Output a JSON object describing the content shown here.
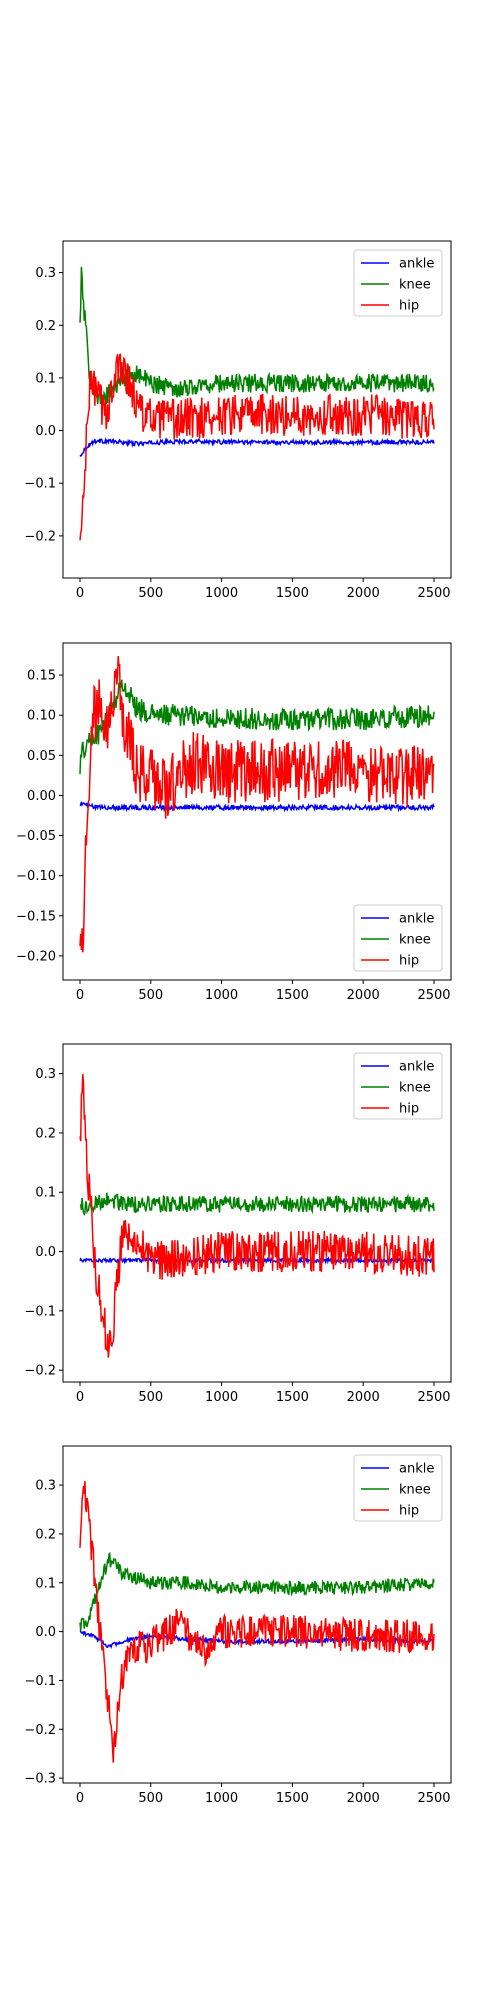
{
  "chart_data": [
    {
      "type": "line",
      "x_range": [
        0,
        2500
      ],
      "xlim": [
        -120,
        2620
      ],
      "ylim": [
        -0.28,
        0.36
      ],
      "xticks": [
        0,
        500,
        1000,
        1500,
        2000,
        2500
      ],
      "yticks": [
        -0.2,
        -0.1,
        0.0,
        0.1,
        0.2,
        0.3
      ],
      "ytick_labels": [
        "−0.2",
        "−0.1",
        "0.0",
        "0.1",
        "0.2",
        "0.3"
      ],
      "xtick_labels": [
        "0",
        "500",
        "1000",
        "1500",
        "2000",
        "2500"
      ],
      "legend": "upper right",
      "grid": false,
      "series": [
        {
          "name": "ankle",
          "color": "#0000ff",
          "points": [
            [
              0,
              -0.05
            ],
            [
              20,
              -0.04
            ],
            [
              50,
              -0.03
            ],
            [
              100,
              -0.02
            ],
            [
              200,
              -0.02
            ],
            [
              400,
              -0.025
            ],
            [
              600,
              -0.022
            ],
            [
              800,
              -0.02
            ],
            [
              1000,
              -0.022
            ],
            [
              1500,
              -0.022
            ],
            [
              2000,
              -0.022
            ],
            [
              2500,
              -0.022
            ]
          ],
          "noise": 0.004
        },
        {
          "name": "knee",
          "color": "#008000",
          "points": [
            [
              0,
              0.2
            ],
            [
              10,
              0.3
            ],
            [
              20,
              0.25
            ],
            [
              40,
              0.2
            ],
            [
              60,
              0.12
            ],
            [
              100,
              0.08
            ],
            [
              150,
              0.05
            ],
            [
              200,
              0.07
            ],
            [
              300,
              0.1
            ],
            [
              400,
              0.11
            ],
            [
              500,
              0.09
            ],
            [
              700,
              0.08
            ],
            [
              1000,
              0.09
            ],
            [
              1500,
              0.09
            ],
            [
              2000,
              0.09
            ],
            [
              2500,
              0.09
            ]
          ],
          "noise": 0.018
        },
        {
          "name": "hip",
          "color": "#ff0000",
          "points": [
            [
              0,
              -0.22
            ],
            [
              20,
              -0.15
            ],
            [
              40,
              -0.05
            ],
            [
              60,
              0.05
            ],
            [
              80,
              0.1
            ],
            [
              120,
              0.07
            ],
            [
              180,
              0.03
            ],
            [
              250,
              0.1
            ],
            [
              300,
              0.13
            ],
            [
              400,
              0.05
            ],
            [
              500,
              0.02
            ],
            [
              700,
              0.02
            ],
            [
              1000,
              0.03
            ],
            [
              1500,
              0.03
            ],
            [
              2000,
              0.03
            ],
            [
              2500,
              0.02
            ]
          ],
          "noise": 0.04
        }
      ]
    },
    {
      "type": "line",
      "x_range": [
        0,
        2500
      ],
      "xlim": [
        -120,
        2620
      ],
      "ylim": [
        -0.23,
        0.19
      ],
      "xticks": [
        0,
        500,
        1000,
        1500,
        2000,
        2500
      ],
      "yticks": [
        -0.2,
        -0.15,
        -0.1,
        -0.05,
        0.0,
        0.05,
        0.1,
        0.15
      ],
      "ytick_labels": [
        "−0.20",
        "−0.15",
        "−0.10",
        "−0.05",
        "0.00",
        "0.05",
        "0.10",
        "0.15"
      ],
      "xtick_labels": [
        "0",
        "500",
        "1000",
        "1500",
        "2000",
        "2500"
      ],
      "legend": "lower right",
      "grid": false,
      "series": [
        {
          "name": "ankle",
          "color": "#0000ff",
          "points": [
            [
              0,
              -0.01
            ],
            [
              50,
              -0.012
            ],
            [
              100,
              -0.015
            ],
            [
              500,
              -0.015
            ],
            [
              1000,
              -0.015
            ],
            [
              1500,
              -0.015
            ],
            [
              2000,
              -0.015
            ],
            [
              2500,
              -0.015
            ]
          ],
          "noise": 0.003
        },
        {
          "name": "knee",
          "color": "#008000",
          "points": [
            [
              0,
              0.04
            ],
            [
              30,
              0.06
            ],
            [
              80,
              0.07
            ],
            [
              150,
              0.08
            ],
            [
              250,
              0.12
            ],
            [
              300,
              0.14
            ],
            [
              400,
              0.11
            ],
            [
              500,
              0.1
            ],
            [
              700,
              0.1
            ],
            [
              1000,
              0.095
            ],
            [
              1500,
              0.095
            ],
            [
              2000,
              0.095
            ],
            [
              2500,
              0.1
            ]
          ],
          "noise": 0.014
        },
        {
          "name": "hip",
          "color": "#ff0000",
          "points": [
            [
              0,
              -0.15
            ],
            [
              20,
              -0.18
            ],
            [
              40,
              -0.08
            ],
            [
              60,
              0.02
            ],
            [
              100,
              0.1
            ],
            [
              150,
              0.12
            ],
            [
              200,
              0.09
            ],
            [
              260,
              0.15
            ],
            [
              300,
              0.1
            ],
            [
              400,
              0.03
            ],
            [
              500,
              0.02
            ],
            [
              600,
              0.01
            ],
            [
              800,
              0.04
            ],
            [
              1000,
              0.03
            ],
            [
              1500,
              0.03
            ],
            [
              2000,
              0.03
            ],
            [
              2500,
              0.02
            ]
          ],
          "noise": 0.04
        }
      ]
    },
    {
      "type": "line",
      "x_range": [
        0,
        2500
      ],
      "xlim": [
        -120,
        2620
      ],
      "ylim": [
        -0.22,
        0.35
      ],
      "xticks": [
        0,
        500,
        1000,
        1500,
        2000,
        2500
      ],
      "yticks": [
        -0.2,
        -0.1,
        0.0,
        0.1,
        0.2,
        0.3
      ],
      "ytick_labels": [
        "−0.2",
        "−0.1",
        "0.0",
        "0.1",
        "0.2",
        "0.3"
      ],
      "xtick_labels": [
        "0",
        "500",
        "1000",
        "1500",
        "2000",
        "2500"
      ],
      "legend": "upper right",
      "grid": false,
      "series": [
        {
          "name": "ankle",
          "color": "#0000ff",
          "points": [
            [
              0,
              -0.015
            ],
            [
              500,
              -0.015
            ],
            [
              1000,
              -0.015
            ],
            [
              1500,
              -0.015
            ],
            [
              2000,
              -0.015
            ],
            [
              2500,
              -0.015
            ]
          ],
          "noise": 0.003
        },
        {
          "name": "knee",
          "color": "#008000",
          "points": [
            [
              0,
              0.08
            ],
            [
              50,
              0.07
            ],
            [
              100,
              0.08
            ],
            [
              200,
              0.09
            ],
            [
              300,
              0.08
            ],
            [
              500,
              0.08
            ],
            [
              1000,
              0.08
            ],
            [
              1500,
              0.08
            ],
            [
              2000,
              0.08
            ],
            [
              2500,
              0.08
            ]
          ],
          "noise": 0.014
        },
        {
          "name": "hip",
          "color": "#ff0000",
          "points": [
            [
              0,
              0.2
            ],
            [
              20,
              0.28
            ],
            [
              40,
              0.18
            ],
            [
              80,
              0.06
            ],
            [
              120,
              -0.05
            ],
            [
              170,
              -0.12
            ],
            [
              220,
              -0.17
            ],
            [
              260,
              -0.05
            ],
            [
              300,
              0.03
            ],
            [
              400,
              0.03
            ],
            [
              500,
              -0.02
            ],
            [
              700,
              -0.01
            ],
            [
              1000,
              0.0
            ],
            [
              1500,
              0.0
            ],
            [
              2000,
              0.0
            ],
            [
              2500,
              -0.01
            ]
          ],
          "noise": 0.035
        }
      ]
    },
    {
      "type": "line",
      "x_range": [
        0,
        2500
      ],
      "xlim": [
        -120,
        2620
      ],
      "ylim": [
        -0.31,
        0.38
      ],
      "xticks": [
        0,
        500,
        1000,
        1500,
        2000,
        2500
      ],
      "yticks": [
        -0.3,
        -0.2,
        -0.1,
        0.0,
        0.1,
        0.2,
        0.3
      ],
      "ytick_labels": [
        "−0.3",
        "−0.2",
        "−0.1",
        "0.0",
        "0.1",
        "0.2",
        "0.3"
      ],
      "xtick_labels": [
        "0",
        "500",
        "1000",
        "1500",
        "2000",
        "2500"
      ],
      "legend": "upper right",
      "grid": false,
      "series": [
        {
          "name": "ankle",
          "color": "#0000ff",
          "points": [
            [
              0,
              0.0
            ],
            [
              100,
              -0.01
            ],
            [
              200,
              -0.03
            ],
            [
              300,
              -0.02
            ],
            [
              500,
              -0.01
            ],
            [
              1000,
              -0.02
            ],
            [
              1500,
              -0.02
            ],
            [
              2000,
              -0.015
            ],
            [
              2500,
              -0.02
            ]
          ],
          "noise": 0.004
        },
        {
          "name": "knee",
          "color": "#008000",
          "points": [
            [
              0,
              0.01
            ],
            [
              50,
              0.02
            ],
            [
              100,
              0.06
            ],
            [
              150,
              0.1
            ],
            [
              200,
              0.15
            ],
            [
              300,
              0.12
            ],
            [
              500,
              0.1
            ],
            [
              800,
              0.1
            ],
            [
              1000,
              0.09
            ],
            [
              1500,
              0.09
            ],
            [
              2000,
              0.09
            ],
            [
              2500,
              0.1
            ]
          ],
          "noise": 0.014
        },
        {
          "name": "hip",
          "color": "#ff0000",
          "points": [
            [
              0,
              0.15
            ],
            [
              20,
              0.3
            ],
            [
              50,
              0.25
            ],
            [
              100,
              0.12
            ],
            [
              150,
              -0.02
            ],
            [
              200,
              -0.15
            ],
            [
              240,
              -0.25
            ],
            [
              280,
              -0.12
            ],
            [
              350,
              -0.03
            ],
            [
              500,
              -0.03
            ],
            [
              700,
              0.02
            ],
            [
              900,
              -0.05
            ],
            [
              1000,
              0.0
            ],
            [
              1500,
              0.0
            ],
            [
              2000,
              -0.01
            ],
            [
              2500,
              -0.01
            ]
          ],
          "noise": 0.035
        }
      ]
    }
  ]
}
